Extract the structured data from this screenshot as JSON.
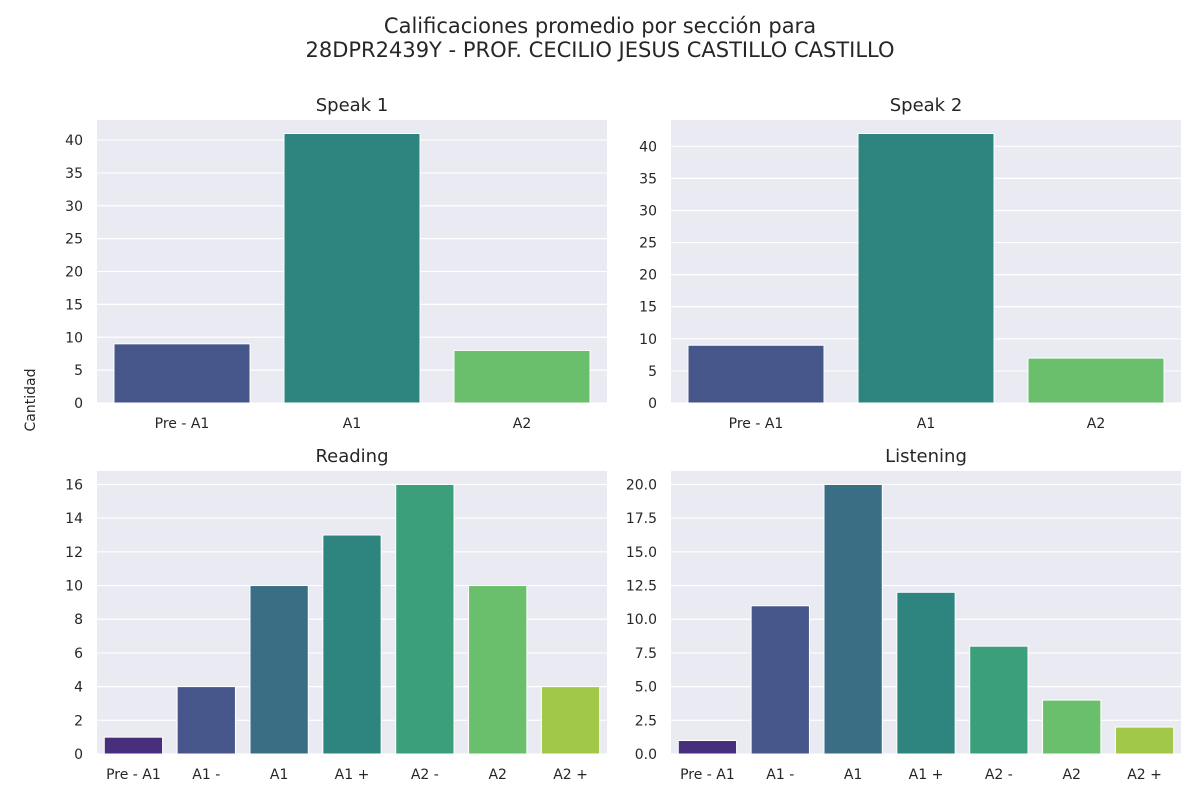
{
  "figure": {
    "title_line1": "Calificaciones promedio por sección para",
    "title_line2": "28DPR2439Y - PROF. CECILIO JESUS CASTILLO CASTILLO",
    "ylabel": "Cantidad"
  },
  "colors": {
    "plot_bg": "#eaeaf2",
    "grid": "#ffffff"
  },
  "chart_data": [
    {
      "type": "bar",
      "title": "Speak 1",
      "categories": [
        "Pre - A1",
        "A1",
        "A2"
      ],
      "values": [
        9,
        41,
        8
      ],
      "colors": [
        "#46568a",
        "#2e847f",
        "#6abf6c"
      ],
      "ylim": [
        0,
        43.05
      ],
      "yticks": [
        0,
        5,
        10,
        15,
        20,
        25,
        30,
        35,
        40
      ],
      "ytick_labels": [
        "0",
        "5",
        "10",
        "15",
        "20",
        "25",
        "30",
        "35",
        "40"
      ],
      "grid": true
    },
    {
      "type": "bar",
      "title": "Speak 2",
      "categories": [
        "Pre - A1",
        "A1",
        "A2"
      ],
      "values": [
        9,
        42,
        7
      ],
      "colors": [
        "#46568a",
        "#2e847f",
        "#6abf6c"
      ],
      "ylim": [
        0,
        44.1
      ],
      "yticks": [
        0,
        5,
        10,
        15,
        20,
        25,
        30,
        35,
        40
      ],
      "ytick_labels": [
        "0",
        "5",
        "10",
        "15",
        "20",
        "25",
        "30",
        "35",
        "40"
      ],
      "grid": true
    },
    {
      "type": "bar",
      "title": "Reading",
      "categories": [
        "Pre - A1",
        "A1 -",
        "A1",
        "A1 +",
        "A2 -",
        "A2",
        "A2 +"
      ],
      "values": [
        1,
        4,
        10,
        13,
        16,
        10,
        4
      ],
      "colors": [
        "#472f7d",
        "#46568a",
        "#3a6e85",
        "#2e847f",
        "#3c9f7c",
        "#6abf6c",
        "#a2c84a"
      ],
      "ylim": [
        0,
        16.8
      ],
      "yticks": [
        0,
        2,
        4,
        6,
        8,
        10,
        12,
        14,
        16
      ],
      "ytick_labels": [
        "0",
        "2",
        "4",
        "6",
        "8",
        "10",
        "12",
        "14",
        "16"
      ],
      "grid": true
    },
    {
      "type": "bar",
      "title": "Listening",
      "categories": [
        "Pre - A1",
        "A1 -",
        "A1",
        "A1 +",
        "A2 -",
        "A2",
        "A2 +"
      ],
      "values": [
        1,
        11,
        20,
        12,
        8,
        4,
        2
      ],
      "colors": [
        "#472f7d",
        "#46568a",
        "#3a6e85",
        "#2e847f",
        "#3c9f7c",
        "#6abf6c",
        "#a2c84a"
      ],
      "ylim": [
        0,
        21
      ],
      "yticks": [
        0,
        2.5,
        5,
        7.5,
        10,
        12.5,
        15,
        17.5,
        20
      ],
      "ytick_labels": [
        "0.0",
        "2.5",
        "5.0",
        "7.5",
        "10.0",
        "12.5",
        "15.0",
        "17.5",
        "20.0"
      ],
      "grid": true
    }
  ]
}
